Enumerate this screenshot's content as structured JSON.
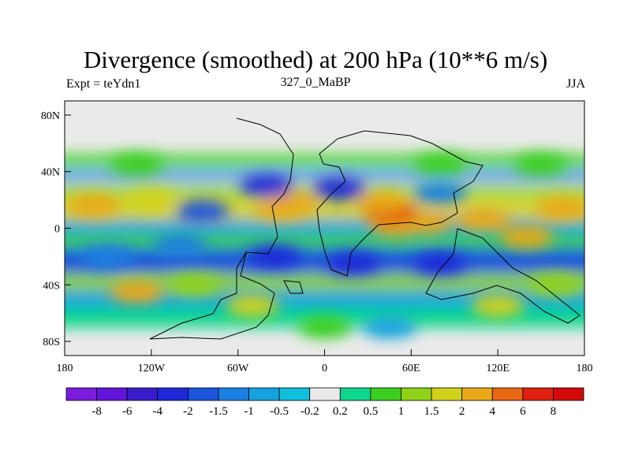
{
  "chart_data": {
    "type": "heatmap",
    "title": "Divergence (smoothed) at 200 hPa (10**6 m/s)",
    "left_label": "Expt = teYdn1",
    "center_label": "327_0_MaBP",
    "right_label": "JJA",
    "x_ticks": [
      "180",
      "120W",
      "60W",
      "0",
      "60E",
      "120E",
      "180"
    ],
    "y_ticks": [
      "80N",
      "40N",
      "0",
      "40S",
      "80S"
    ],
    "xlim": [
      -180,
      180
    ],
    "ylim": [
      -90,
      90
    ],
    "contour_levels": [
      "-8",
      "-6",
      "-4",
      "-2",
      "-1.5",
      "-1",
      "-0.5",
      "-0.2",
      "0.2",
      "0.5",
      "1",
      "1.5",
      "2",
      "4",
      "6",
      "8"
    ],
    "colors": [
      "#7a1cdc",
      "#6214d8",
      "#3a1ccc",
      "#1e2ad8",
      "#1a55dc",
      "#1a7fe0",
      "#16a2e0",
      "#10bfdc",
      "#eaeaea",
      "#10d58c",
      "#3ccf22",
      "#8ed21c",
      "#d2d21c",
      "#e8a818",
      "#e86614",
      "#e0200e",
      "#d20a0a"
    ],
    "regions": [
      {
        "lon": -30,
        "lat": 14,
        "value": 2.5
      },
      {
        "lon": -22,
        "lat": 18,
        "value": 3
      },
      {
        "lon": 50,
        "lat": 2,
        "value": 3.5
      },
      {
        "lon": 70,
        "lat": 4,
        "value": 3
      },
      {
        "lon": 45,
        "lat": 12,
        "value": 7
      },
      {
        "lon": 40,
        "lat": 18,
        "value": 3
      },
      {
        "lon": 110,
        "lat": 6,
        "value": 2.5
      },
      {
        "lon": 140,
        "lat": -6,
        "value": 2.5
      },
      {
        "lon": 165,
        "lat": 14,
        "value": 2.5
      },
      {
        "lon": -160,
        "lat": 16,
        "value": 2.2
      },
      {
        "lon": -120,
        "lat": 20,
        "value": 1.6
      },
      {
        "lon": -85,
        "lat": 12,
        "value": -1.6
      },
      {
        "lon": -100,
        "lat": -12,
        "value": -1.2
      },
      {
        "lon": -35,
        "lat": -20,
        "value": -2.5
      },
      {
        "lon": 20,
        "lat": -25,
        "value": -2.4
      },
      {
        "lon": 80,
        "lat": -25,
        "value": -2.6
      },
      {
        "lon": -150,
        "lat": -20,
        "value": -1.4
      },
      {
        "lon": 80,
        "lat": 25,
        "value": -1.5
      },
      {
        "lon": 10,
        "lat": 28,
        "value": -2.2
      },
      {
        "lon": -40,
        "lat": 30,
        "value": -2.2
      },
      {
        "lon": -130,
        "lat": -45,
        "value": 2.4
      },
      {
        "lon": -50,
        "lat": -55,
        "value": 1.8
      },
      {
        "lon": 120,
        "lat": -55,
        "value": 1.6
      },
      {
        "lon": 160,
        "lat": -40,
        "value": 1.2
      },
      {
        "lon": -90,
        "lat": -40,
        "value": 1
      },
      {
        "lon": 45,
        "lat": -70,
        "value": -1
      },
      {
        "lon": -130,
        "lat": 45,
        "value": 0.8
      },
      {
        "lon": 80,
        "lat": 45,
        "value": 0.8
      },
      {
        "lon": 150,
        "lat": 45,
        "value": 0.8
      },
      {
        "lon": 0,
        "lat": -70,
        "value": 0.6
      }
    ]
  }
}
